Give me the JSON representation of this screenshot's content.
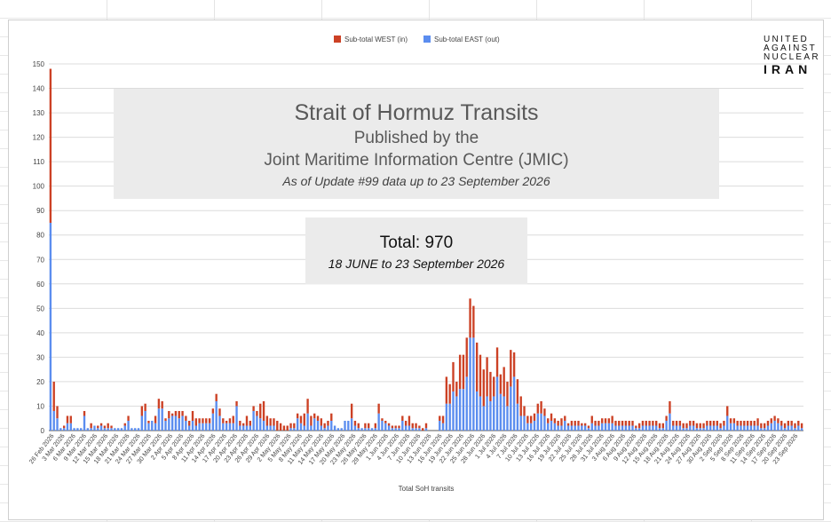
{
  "logo": {
    "line1": "UNITED",
    "line2": "AGAINST",
    "line3": "NUCLEAR",
    "line4": "IRAN"
  },
  "title_box": {
    "title": "Strait of Hormuz Transits",
    "line2": "Published by the",
    "line3": "Joint Maritime Information Centre (JMIC)",
    "line4": "As of Update #99 data up to 23 September 2026"
  },
  "total_box": {
    "total": "Total: 970",
    "range": "18 JUNE to 23 September 2026"
  },
  "chart_data": {
    "type": "bar",
    "stacked": true,
    "xlabel": "Total SoH transits",
    "ylim": [
      0,
      150
    ],
    "yticks": [
      0,
      10,
      20,
      30,
      40,
      50,
      60,
      70,
      80,
      90,
      100,
      110,
      120,
      130,
      140,
      150
    ],
    "legend_position": "top-center",
    "colors": {
      "west": "#cc4125",
      "east": "#5b8def"
    },
    "x_start": "2026-02-26",
    "tick_labels": [
      "26 Feb 2026",
      "3 Mar 2026",
      "6 Mar 2026",
      "9 Mar 2026",
      "12 Mar 2026",
      "15 Mar 2026",
      "18 Mar 2026",
      "21 Mar 2026",
      "24 Mar 2026",
      "27 Mar 2026",
      "30 Mar 2026",
      "2 Apr 2026",
      "5 Apr 2026",
      "8 Apr 2026",
      "11 Apr 2026",
      "14 Apr 2026",
      "17 Apr 2026",
      "20 Apr 2026",
      "23 Apr 2026",
      "26 Apr 2026",
      "29 Apr 2026",
      "2 May 2026",
      "5 May 2026",
      "8 May 2026",
      "11 May 2026",
      "14 May 2026",
      "17 May 2026",
      "20 May 2026",
      "23 May 2026",
      "26 May 2026",
      "29 May 2026",
      "1 Jun 2026",
      "4 Jun 2026",
      "7 Jun 2026",
      "10 Jun 2026",
      "13 Jun 2026",
      "16 Jun 2026",
      "19 Jun 2026",
      "22 Jun 2026",
      "25 Jun 2026",
      "28 Jun 2026",
      "1 Jul 2026",
      "4 Jul 2026",
      "7 Jul 2026",
      "10 Jul 2026",
      "13 Jul 2026",
      "16 Jul 2026",
      "19 Jul 2026",
      "22 Jul 2026",
      "25 Jul 2026",
      "28 Jul 2026",
      "31 Jul 2026",
      "3 Aug 2026",
      "6 Aug 2026",
      "9 Aug 2026",
      "12 Aug 2026",
      "15 Aug 2026",
      "18 Aug 2026",
      "21 Aug 2026",
      "24 Aug 2026",
      "27 Aug 2026",
      "30 Aug 2026",
      "2 Sep 2026",
      "5 Sep 2026",
      "8 Sep 2026",
      "11 Sep 2026",
      "14 Sep 2026",
      "17 Sep 2026",
      "20 Sep 2026",
      "23 Sep 2026"
    ],
    "series": [
      {
        "name": "Sub-total WEST (in)",
        "values": [
          63,
          12,
          5,
          0,
          1,
          3,
          3,
          0,
          0,
          0,
          2,
          0,
          2,
          0,
          1,
          1,
          1,
          2,
          1,
          0,
          0,
          0,
          1,
          2,
          0,
          0,
          0,
          4,
          3,
          1,
          0,
          3,
          4,
          3,
          1,
          3,
          1,
          2,
          3,
          2,
          2,
          2,
          4,
          3,
          2,
          2,
          2,
          2,
          2,
          3,
          3,
          2,
          1,
          2,
          3,
          2,
          2,
          1,
          4,
          2,
          2,
          2,
          6,
          8,
          4,
          3,
          3,
          4,
          3,
          2,
          2,
          2,
          2,
          2,
          3,
          5,
          6,
          4,
          2,
          2,
          3,
          2,
          2,
          3,
          0,
          0,
          0,
          0,
          0,
          6,
          2,
          2,
          0,
          2,
          2,
          0,
          2,
          4,
          1,
          1,
          1,
          1,
          1,
          1,
          2,
          2,
          4,
          2,
          2,
          1,
          1,
          2,
          0,
          0,
          0,
          2,
          3,
          11,
          8,
          12,
          6,
          14,
          14,
          16,
          16,
          13,
          20,
          17,
          15,
          16,
          12,
          8,
          12,
          8,
          12,
          10,
          15,
          10,
          10,
          8,
          4,
          3,
          3,
          3,
          4,
          5,
          3,
          2,
          3,
          2,
          2,
          3,
          2,
          1,
          2,
          2,
          2,
          1,
          1,
          1,
          3,
          2,
          2,
          2,
          2,
          2,
          3,
          2,
          2,
          2,
          2,
          2,
          2,
          1,
          2,
          2,
          2,
          2,
          2,
          2,
          2,
          2,
          2,
          5,
          2,
          2,
          2,
          2,
          2,
          2,
          2,
          2,
          2,
          2,
          2,
          2,
          2,
          2,
          2,
          2,
          4,
          2,
          2,
          2,
          2,
          2,
          2,
          2,
          2,
          3,
          2,
          2,
          2,
          2,
          2,
          2,
          2,
          2,
          2,
          2,
          2,
          2,
          2
        ],
        "values_note": "stacked red tops"
      },
      {
        "name": "Sub-total EAST (out)",
        "values": [
          85,
          8,
          5,
          1,
          1,
          3,
          3,
          1,
          1,
          1,
          6,
          1,
          1,
          2,
          1,
          2,
          1,
          1,
          1,
          1,
          1,
          1,
          2,
          4,
          1,
          1,
          1,
          6,
          8,
          3,
          4,
          3,
          9,
          9,
          4,
          5,
          6,
          6,
          5,
          6,
          4,
          2,
          4,
          2,
          3,
          3,
          3,
          3,
          7,
          12,
          6,
          3,
          3,
          3,
          3,
          10,
          2,
          2,
          2,
          2,
          8,
          6,
          5,
          4,
          2,
          2,
          2,
          0,
          0,
          0,
          0,
          1,
          1,
          5,
          3,
          2,
          7,
          2,
          5,
          4,
          2,
          1,
          2,
          4,
          2,
          1,
          1,
          4,
          4,
          5,
          2,
          1,
          1,
          1,
          1,
          1,
          1,
          7,
          4,
          3,
          2,
          1,
          1,
          1,
          4,
          2,
          2,
          1,
          1,
          1,
          0,
          1,
          0,
          0,
          0,
          4,
          3,
          11,
          11,
          16,
          14,
          17,
          17,
          22,
          38,
          38,
          16,
          14,
          10,
          14,
          12,
          14,
          22,
          15,
          14,
          10,
          18,
          22,
          11,
          6,
          6,
          3,
          3,
          4,
          7,
          7,
          6,
          3,
          4,
          3,
          2,
          2,
          4,
          2,
          2,
          2,
          2,
          2,
          2,
          1,
          3,
          2,
          2,
          3,
          3,
          3,
          3,
          2,
          2,
          2,
          2,
          2,
          2,
          1,
          1,
          2,
          2,
          2,
          2,
          2,
          1,
          1,
          4,
          7,
          2,
          2,
          2,
          1,
          1,
          2,
          2,
          1,
          1,
          1,
          2,
          2,
          2,
          2,
          1,
          2,
          6,
          3,
          3,
          2,
          2,
          2,
          2,
          2,
          2,
          2,
          1,
          1,
          2,
          3,
          4,
          3,
          2,
          1,
          2,
          2,
          1,
          2,
          1
        ]
      }
    ]
  },
  "legend": {
    "west": "Sub-total WEST (in)",
    "east": "Sub-total EAST (out)"
  }
}
